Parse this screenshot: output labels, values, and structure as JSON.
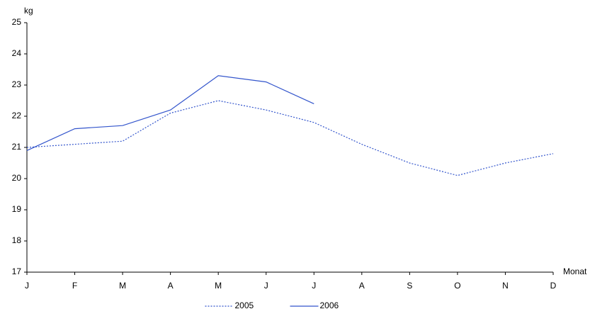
{
  "chart_data": {
    "type": "line",
    "y_label": "kg",
    "x_label": "Monat",
    "categories": [
      "J",
      "F",
      "M",
      "A",
      "M",
      "J",
      "J",
      "A",
      "S",
      "O",
      "N",
      "D"
    ],
    "series": [
      {
        "name": "2005",
        "color": "#3355cc",
        "style": "dotted",
        "values": [
          21.0,
          21.1,
          21.2,
          22.1,
          22.5,
          22.2,
          21.8,
          21.1,
          20.5,
          20.1,
          20.5,
          20.8
        ]
      },
      {
        "name": "2006",
        "color": "#3355cc",
        "style": "solid",
        "values": [
          20.9,
          21.6,
          21.7,
          22.2,
          23.3,
          23.1,
          22.4,
          null,
          null,
          null,
          null,
          null
        ]
      }
    ],
    "ylim": [
      17,
      25
    ],
    "yticks": [
      17,
      18,
      19,
      20,
      21,
      22,
      23,
      24,
      25
    ],
    "grid": false,
    "legend": "bottom"
  }
}
